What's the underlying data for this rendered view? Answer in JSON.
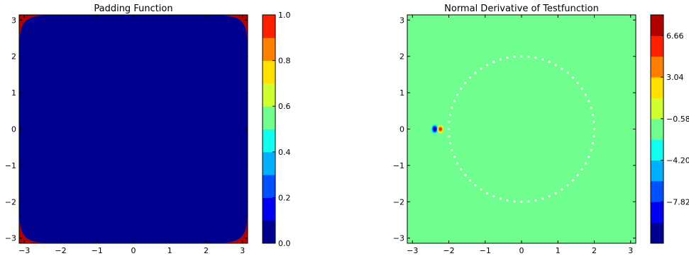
{
  "chart_data": [
    {
      "type": "heatmap",
      "title": "Padding Function",
      "xlabel": "",
      "ylabel": "",
      "xlim": [
        -3.14159,
        3.14159
      ],
      "ylim": [
        -3.14159,
        3.14159
      ],
      "xticks": [
        -3,
        -2,
        -1,
        0,
        1,
        2,
        3
      ],
      "yticks": [
        -3,
        -2,
        -1,
        0,
        1,
        2,
        3
      ],
      "xtick_labels": [
        "−3",
        "−2",
        "−1",
        "0",
        "1",
        "2",
        "3"
      ],
      "ytick_labels": [
        "−3",
        "−2",
        "−1",
        "0",
        "1",
        "2",
        "3"
      ],
      "field": "padding",
      "levels": [
        0.0,
        0.1,
        0.2,
        0.3,
        0.4,
        0.5,
        0.6,
        0.7,
        0.8,
        0.9,
        1.0
      ],
      "colorbar": {
        "ticks": [
          0.0,
          0.2,
          0.4,
          0.6,
          0.8,
          1.0
        ],
        "tick_labels": [
          "0.0",
          "0.2",
          "0.4",
          "0.6",
          "0.8",
          "1.0"
        ]
      }
    },
    {
      "type": "heatmap",
      "title": "Normal Derivative of Testfunction",
      "xlabel": "",
      "ylabel": "",
      "xlim": [
        -3.14159,
        3.14159
      ],
      "ylim": [
        -3.14159,
        3.14159
      ],
      "xticks": [
        -3,
        -2,
        -1,
        0,
        1,
        2,
        3
      ],
      "yticks": [
        -3,
        -2,
        -1,
        0,
        1,
        2,
        3
      ],
      "xtick_labels": [
        "−3",
        "−2",
        "−1",
        "0",
        "1",
        "2",
        "3"
      ],
      "ytick_labels": [
        "−3",
        "−2",
        "−1",
        "0",
        "1",
        "2",
        "3"
      ],
      "field": "derivative",
      "background_level_index": 5,
      "dipole": {
        "center": [
          -2.27,
          0.0
        ],
        "negative_level_index": 0,
        "positive_level_index": 9
      },
      "circle": {
        "center": [
          0,
          0
        ],
        "radius": 2.0,
        "points": 64,
        "color": "#ffffff"
      },
      "levels": [
        -11.44,
        -9.63,
        -7.82,
        -6.01,
        -4.2,
        -2.39,
        -0.58,
        1.23,
        3.04,
        4.85,
        6.66,
        8.47
      ],
      "colorbar": {
        "ticks": [
          -7.82,
          -4.2,
          -0.58,
          3.04,
          6.66
        ],
        "tick_labels": [
          "−7.82",
          "−4.20",
          "−0.58",
          "3.04",
          "6.66"
        ]
      }
    }
  ],
  "colormap": [
    "#00008f",
    "#0000f0",
    "#0050ff",
    "#00b0ff",
    "#10ffef",
    "#70ff8f",
    "#cfff30",
    "#ffe000",
    "#ff8000",
    "#ff2000",
    "#b00000"
  ]
}
